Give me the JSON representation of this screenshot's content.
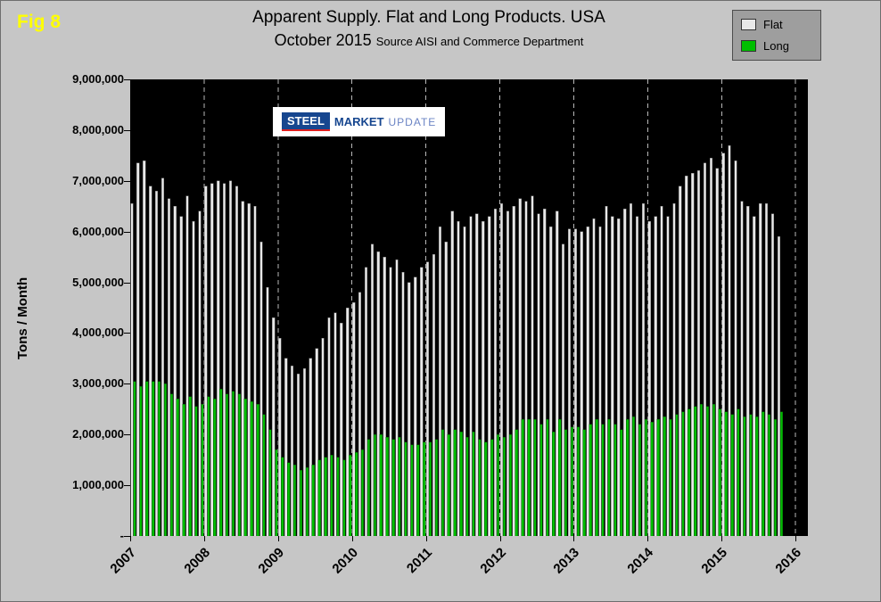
{
  "figure": {
    "label": "Fig 8"
  },
  "logo": {
    "word1": "STEEL",
    "word2": "MARKET",
    "word3": "UPDATE"
  },
  "chart_data": {
    "type": "bar",
    "title": "Apparent Supply. Flat and Long Products. USA",
    "subtitle": "October 2015",
    "source": "Source AISI and Commerce Department",
    "ylabel": "Tons / Month",
    "ylim": [
      0,
      9000000
    ],
    "y_tick_step": 1000000,
    "y_tick_labels": [
      "-",
      "1,000,000",
      "2,000,000",
      "3,000,000",
      "4,000,000",
      "5,000,000",
      "6,000,000",
      "7,000,000",
      "8,000,000",
      "9,000,000"
    ],
    "x_tick_labels": [
      "2007",
      "2008",
      "2009",
      "2010",
      "2011",
      "2012",
      "2013",
      "2014",
      "2015",
      "2016"
    ],
    "months_start": "2007-01",
    "months_end": "2015-10",
    "months_per_year": 12,
    "total_slots": 110,
    "grid": "vertical-dashed",
    "legend_position": "top-right",
    "colors": {
      "flat": "#e8e8e8",
      "long": "#00bf00",
      "plot_bg": "#000000",
      "page_bg": "#c6c6c6",
      "fig_label": "#ffff00",
      "gridline": "#b8b8b8"
    },
    "series": [
      {
        "name": "Flat",
        "color_key": "flat",
        "values": [
          6550000,
          7350000,
          7400000,
          6900000,
          6800000,
          7050000,
          6650000,
          6500000,
          6300000,
          6700000,
          6200000,
          6400000,
          6900000,
          6950000,
          7000000,
          6950000,
          7000000,
          6900000,
          6600000,
          6550000,
          6500000,
          5800000,
          4900000,
          4300000,
          3900000,
          3500000,
          3350000,
          3200000,
          3300000,
          3500000,
          3700000,
          3900000,
          4300000,
          4400000,
          4200000,
          4500000,
          4600000,
          4800000,
          5300000,
          5750000,
          5600000,
          5500000,
          5300000,
          5450000,
          5200000,
          5000000,
          5100000,
          5300000,
          5400000,
          5550000,
          6100000,
          5800000,
          6400000,
          6200000,
          6100000,
          6300000,
          6350000,
          6200000,
          6300000,
          6450000,
          6550000,
          6400000,
          6500000,
          6650000,
          6600000,
          6700000,
          6350000,
          6450000,
          6100000,
          6400000,
          5750000,
          6050000,
          6050000,
          6000000,
          6100000,
          6250000,
          6100000,
          6500000,
          6300000,
          6250000,
          6450000,
          6550000,
          6300000,
          6550000,
          6200000,
          6300000,
          6500000,
          6300000,
          6550000,
          6900000,
          7100000,
          7150000,
          7200000,
          7350000,
          7450000,
          7250000,
          7550000,
          7700000,
          7400000,
          6600000,
          6500000,
          6300000,
          6550000,
          6550000,
          6350000,
          5900000
        ]
      },
      {
        "name": "Long",
        "color_key": "long",
        "values": [
          3050000,
          2950000,
          3050000,
          3050000,
          3050000,
          3000000,
          2800000,
          2700000,
          2600000,
          2750000,
          2550000,
          2600000,
          2750000,
          2700000,
          2900000,
          2800000,
          2850000,
          2800000,
          2700000,
          2650000,
          2600000,
          2400000,
          2100000,
          1700000,
          1550000,
          1450000,
          1400000,
          1300000,
          1350000,
          1400000,
          1500000,
          1550000,
          1600000,
          1550000,
          1500000,
          1600000,
          1650000,
          1700000,
          1900000,
          2000000,
          2000000,
          1950000,
          1900000,
          1950000,
          1850000,
          1800000,
          1800000,
          1850000,
          1850000,
          1900000,
          2100000,
          2000000,
          2100000,
          2050000,
          1950000,
          2050000,
          1900000,
          1850000,
          1900000,
          2000000,
          1950000,
          2000000,
          2100000,
          2300000,
          2300000,
          2300000,
          2200000,
          2300000,
          2050000,
          2300000,
          2100000,
          2150000,
          2150000,
          2100000,
          2200000,
          2300000,
          2200000,
          2300000,
          2200000,
          2100000,
          2300000,
          2350000,
          2200000,
          2300000,
          2250000,
          2300000,
          2350000,
          2300000,
          2400000,
          2450000,
          2500000,
          2550000,
          2600000,
          2550000,
          2600000,
          2500000,
          2450000,
          2400000,
          2500000,
          2350000,
          2400000,
          2350000,
          2450000,
          2400000,
          2300000,
          2450000
        ]
      }
    ]
  }
}
